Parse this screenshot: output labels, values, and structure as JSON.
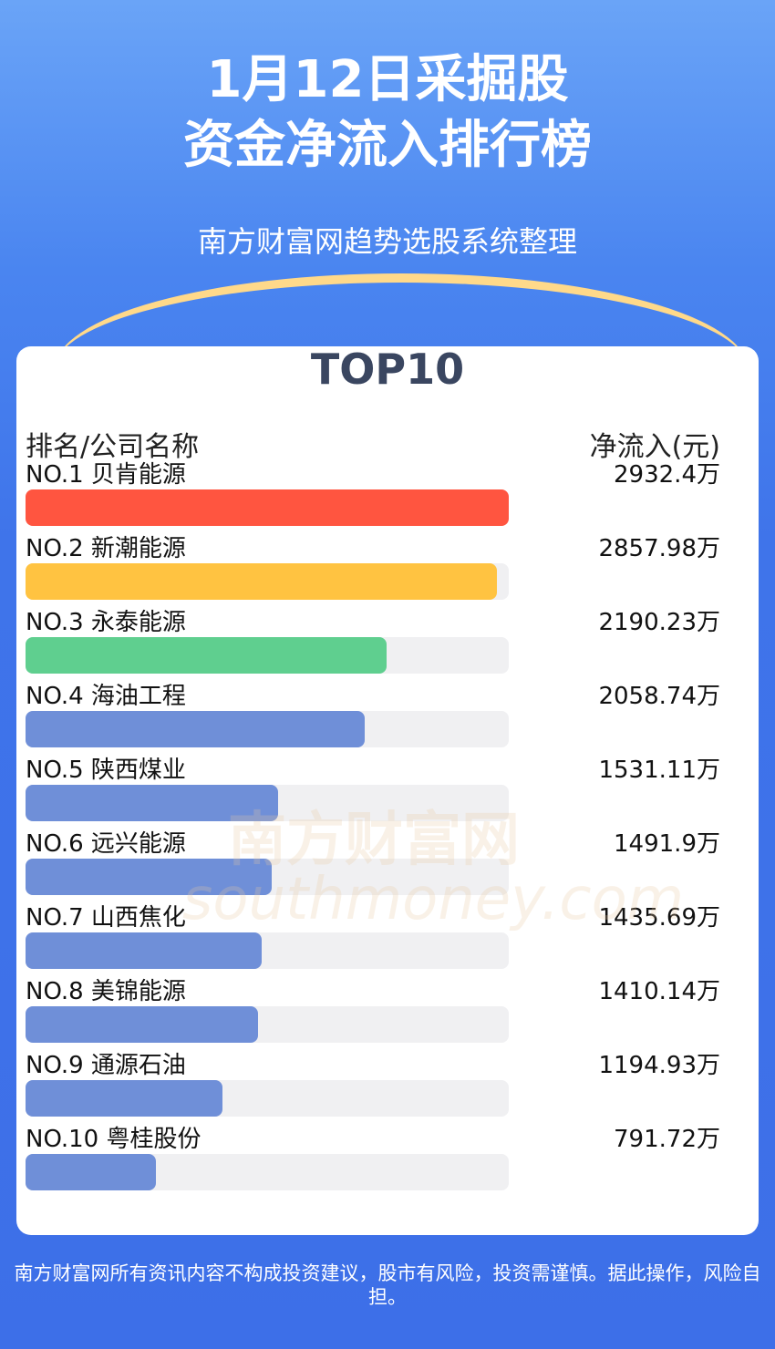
{
  "chart_data": {
    "type": "bar",
    "title_lines": [
      "1月12日采掘股",
      "资金净流入排行榜"
    ],
    "subtitle": "南方财富网趋势选股系统整理",
    "heading": "TOP10",
    "category_header": "排名/公司名称",
    "value_header": "净流入(元)",
    "categories": [
      "NO.1 贝肯能源",
      "NO.2 新潮能源",
      "NO.3 永泰能源",
      "NO.4 海油工程",
      "NO.5 陕西煤业",
      "NO.6 远兴能源",
      "NO.7 山西焦化",
      "NO.8 美锦能源",
      "NO.9 通源石油",
      "NO.10 粤桂股份"
    ],
    "values": [
      2932.4,
      2857.98,
      2190.23,
      2058.74,
      1531.11,
      1491.9,
      1435.69,
      1410.14,
      1194.93,
      791.72
    ],
    "value_labels": [
      "2932.4万",
      "2857.98万",
      "2190.23万",
      "2058.74万",
      "1531.11万",
      "1491.9万",
      "1435.69万",
      "1410.14万",
      "1194.93万",
      "791.72万"
    ],
    "colors": [
      "#ff5540",
      "#ffc341",
      "#5fcf8f",
      "#6f8fd8",
      "#6f8fd8",
      "#6f8fd8",
      "#6f8fd8",
      "#6f8fd8",
      "#6f8fd8",
      "#6f8fd8"
    ],
    "watermark": [
      "南方财富网",
      "southmoney.com"
    ],
    "footer": "南方财富网所有资讯内容不构成投资建议，股市有风险，投资需谨慎。据此操作，风险自担。"
  }
}
